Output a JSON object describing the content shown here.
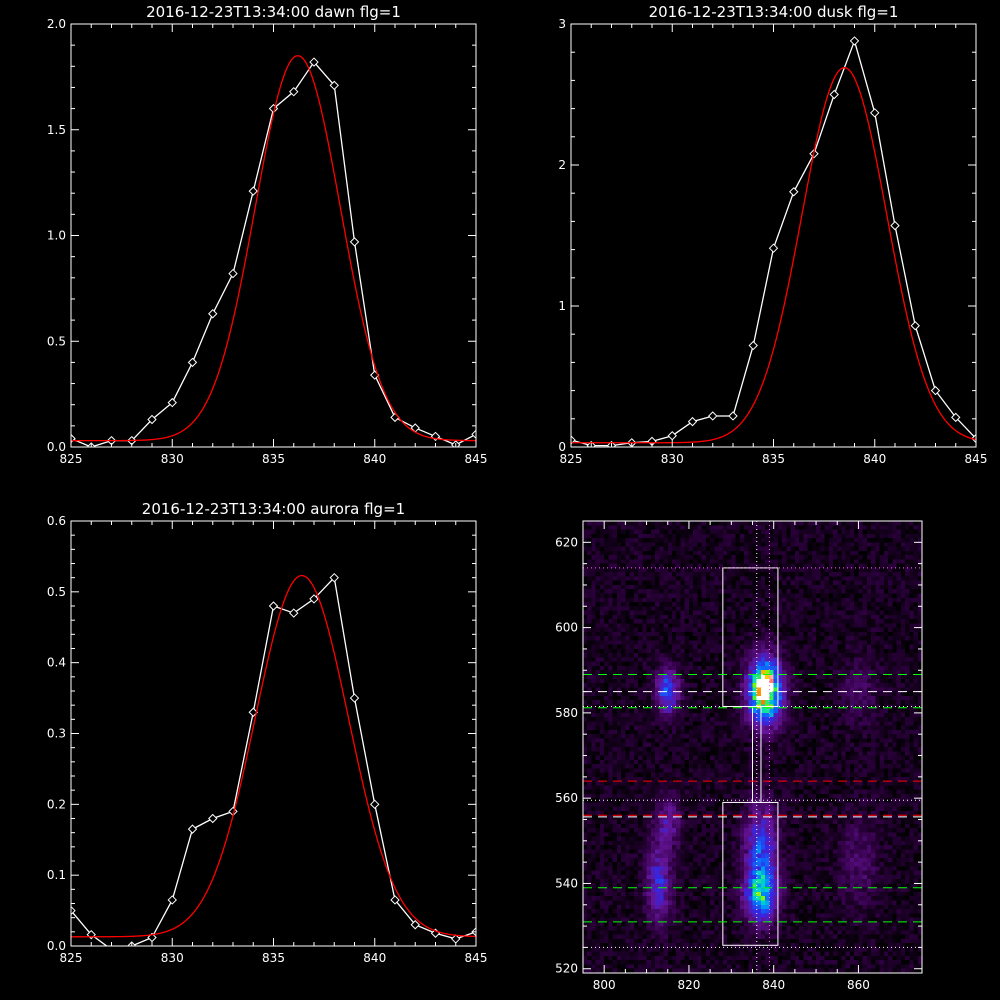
{
  "chart_data": [
    {
      "type": "line",
      "title": "2016-12-23T13:34:00 dawn flg=1",
      "xlim": [
        825,
        845
      ],
      "ylim": [
        0,
        2.0
      ],
      "xticks": [
        "825",
        "830",
        "835",
        "840",
        "845"
      ],
      "yticks": [
        "0.0",
        "0.5",
        "1.0",
        "1.5",
        "2.0"
      ],
      "series": [
        {
          "type": "line",
          "color": "#ffffff",
          "marker": "diamond",
          "x": [
            825,
            826,
            827,
            828,
            829,
            830,
            831,
            832,
            833,
            834,
            835,
            836,
            837,
            838,
            839,
            840,
            841,
            842,
            843,
            844,
            845
          ],
          "y": [
            0.04,
            0.0,
            0.03,
            0.03,
            0.13,
            0.21,
            0.4,
            0.63,
            0.82,
            1.21,
            1.6,
            1.68,
            1.82,
            1.71,
            0.97,
            0.34,
            0.14,
            0.09,
            0.05,
            0.01,
            0.06
          ]
        },
        {
          "type": "line",
          "color": "#ff0000",
          "gaussian": {
            "amplitude": 1.82,
            "center": 836.2,
            "sigma": 2.1,
            "offset": 0.03
          }
        }
      ]
    },
    {
      "type": "line",
      "title": "2016-12-23T13:34:00 dusk flg=1",
      "xlim": [
        825,
        845
      ],
      "ylim": [
        0,
        3
      ],
      "xticks": [
        "825",
        "830",
        "835",
        "840",
        "845"
      ],
      "yticks": [
        "0",
        "1",
        "2",
        "3"
      ],
      "series": [
        {
          "type": "line",
          "color": "#ffffff",
          "marker": "diamond",
          "x": [
            825,
            826,
            827,
            828,
            829,
            830,
            831,
            832,
            833,
            834,
            835,
            836,
            837,
            838,
            839,
            840,
            841,
            842,
            843,
            844,
            845
          ],
          "y": [
            0.05,
            0.01,
            0.01,
            0.03,
            0.04,
            0.08,
            0.18,
            0.22,
            0.22,
            0.72,
            1.41,
            1.81,
            2.08,
            2.5,
            2.88,
            2.37,
            1.57,
            0.86,
            0.4,
            0.21,
            0.06
          ]
        },
        {
          "type": "line",
          "color": "#ff0000",
          "gaussian": {
            "amplitude": 2.66,
            "center": 838.5,
            "sigma": 2.1,
            "offset": 0.03
          }
        }
      ]
    },
    {
      "type": "line",
      "title": "2016-12-23T13:34:00 aurora flg=1",
      "xlim": [
        825,
        845
      ],
      "ylim": [
        0,
        0.6
      ],
      "xticks": [
        "825",
        "830",
        "835",
        "840",
        "845"
      ],
      "yticks": [
        "0.0",
        "0.1",
        "0.2",
        "0.3",
        "0.4",
        "0.5",
        "0.6"
      ],
      "series": [
        {
          "type": "line",
          "color": "#ffffff",
          "marker": "diamond",
          "x": [
            825,
            826,
            827,
            828,
            829,
            830,
            831,
            832,
            833,
            834,
            835,
            836,
            837,
            838,
            839,
            840,
            841,
            842,
            843,
            844,
            845
          ],
          "y": [
            0.05,
            0.016,
            -0.005,
            0.0,
            0.012,
            0.065,
            0.165,
            0.18,
            0.19,
            0.33,
            0.48,
            0.47,
            0.49,
            0.52,
            0.35,
            0.2,
            0.065,
            0.03,
            0.018,
            0.01,
            0.02
          ]
        },
        {
          "type": "line",
          "color": "#ff0000",
          "gaussian": {
            "amplitude": 0.51,
            "center": 836.4,
            "sigma": 2.3,
            "offset": 0.013
          }
        }
      ]
    },
    {
      "type": "heatmap",
      "xlim": [
        795,
        875
      ],
      "ylim": [
        519,
        625
      ],
      "xticks": [
        "800",
        "820",
        "840",
        "860"
      ],
      "yticks": [
        "520",
        "540",
        "560",
        "580",
        "600",
        "620"
      ],
      "blobs": [
        {
          "x": 838,
          "y": 585,
          "sx": 2.6,
          "sy": 5,
          "amp": 1.0
        },
        {
          "x": 838,
          "y": 587,
          "sx": 1.0,
          "sy": 1.6,
          "amp": 0.5
        },
        {
          "x": 815,
          "y": 585,
          "sx": 1.8,
          "sy": 3.5,
          "amp": 0.45
        },
        {
          "x": 837,
          "y": 537,
          "sx": 2.5,
          "sy": 4,
          "amp": 0.58
        },
        {
          "x": 837,
          "y": 548,
          "sx": 2.5,
          "sy": 7,
          "amp": 0.42
        },
        {
          "x": 813,
          "y": 540,
          "sx": 2.0,
          "sy": 6,
          "amp": 0.32
        },
        {
          "x": 815,
          "y": 554,
          "sx": 2.0,
          "sy": 4,
          "amp": 0.22
        },
        {
          "x": 860,
          "y": 585,
          "sx": 3.0,
          "sy": 5,
          "amp": 0.1
        },
        {
          "x": 860,
          "y": 545,
          "sx": 3.0,
          "sy": 7,
          "amp": 0.12
        }
      ],
      "white_boxes": [
        {
          "x0": 828,
          "x1": 841,
          "y0": 581.5,
          "y1": 614
        },
        {
          "x0": 828,
          "x1": 841,
          "y0": 525.5,
          "y1": 559
        }
      ],
      "connector_x": [
        835,
        837
      ],
      "vertical_dotted": [
        {
          "x": 836,
          "color": "#ffffff"
        },
        {
          "x": 839,
          "color": "#ff66ff"
        }
      ],
      "hlines": [
        {
          "y": 614,
          "style": "dotted",
          "color": "#ff66ff"
        },
        {
          "y": 589,
          "style": "dashed",
          "color": "#00ff00"
        },
        {
          "y": 585,
          "style": "dashed",
          "color": "#ffffff"
        },
        {
          "y": 581.5,
          "style": "dotted",
          "color": "#ffffff"
        },
        {
          "y": 581.2,
          "style": "dashed",
          "color": "#00ff00"
        },
        {
          "y": 564,
          "style": "dashed",
          "color": "#ff0000"
        },
        {
          "y": 559.5,
          "style": "dotted",
          "color": "#ffffff"
        },
        {
          "y": 556,
          "style": "dashed",
          "color": "#ff0000"
        },
        {
          "y": 555.6,
          "style": "dashed",
          "color": "#ffffff"
        },
        {
          "y": 539,
          "style": "dashed",
          "color": "#00ff00"
        },
        {
          "y": 531,
          "style": "dashed",
          "color": "#00ff00"
        },
        {
          "y": 525,
          "style": "dotted",
          "color": "#ffffff"
        }
      ]
    }
  ]
}
